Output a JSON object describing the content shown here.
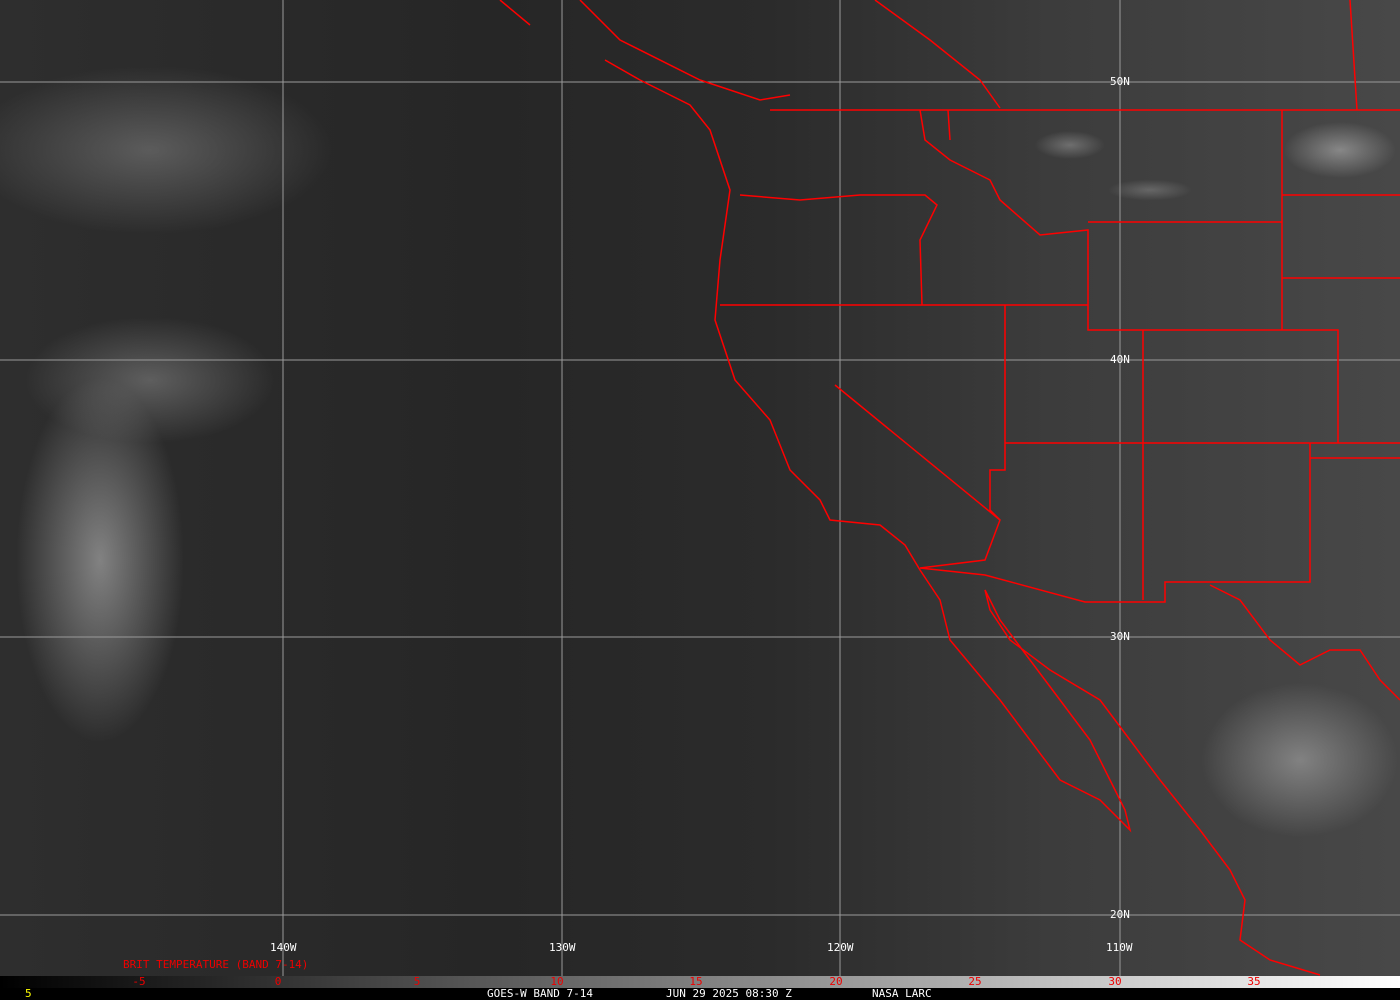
{
  "map": {
    "latitude_labels": [
      "50N",
      "40N",
      "30N",
      "20N"
    ],
    "longitude_labels": [
      "140W",
      "130W",
      "120W",
      "110W"
    ],
    "border_color": "#ff0000",
    "grid_color": "#9a9a9a"
  },
  "colorbar": {
    "title": "BRIT TEMPERATURE (BAND 7-14)",
    "ticks": [
      "-5",
      "0",
      "5",
      "10",
      "15",
      "20",
      "25",
      "30",
      "35"
    ],
    "tick_color": "#ff0000"
  },
  "footer": {
    "frame": "5",
    "satellite": "GOES-W BAND 7-14",
    "datetime": "JUN 29 2025 08:30 Z",
    "credit": "NASA LARC"
  }
}
